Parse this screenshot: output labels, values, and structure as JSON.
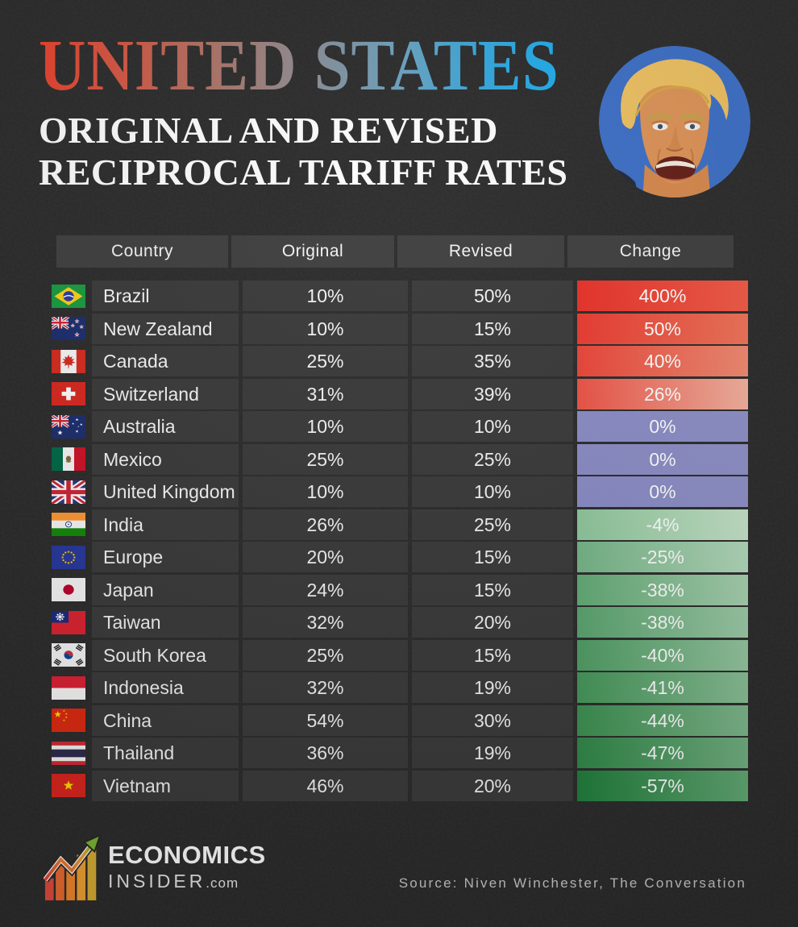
{
  "header": {
    "title": "UNITED STATES",
    "subtitle_line1": "ORIGINAL AND REVISED",
    "subtitle_line2": "RECIPROCAL TARIFF RATES",
    "title_gradient": [
      "#e8422d",
      "#93878b",
      "#1fabe9"
    ],
    "portrait": "donald-trump-photo",
    "portrait_bg": "#3d6fc6"
  },
  "table": {
    "columns": [
      "Country",
      "Original",
      "Revised",
      "Change"
    ],
    "header_bg": "#3f3f3f",
    "row_bg": "#3a3a3a",
    "rows": [
      {
        "country": "Brazil",
        "flag": "brazil",
        "original": "10%",
        "revised": "50%",
        "change": "400%",
        "change_bg": [
          "#e73128",
          "#f25a45"
        ]
      },
      {
        "country": "New Zealand",
        "flag": "new_zealand",
        "original": "10%",
        "revised": "15%",
        "change": "50%",
        "change_bg": [
          "#e93a30",
          "#f07358"
        ]
      },
      {
        "country": "Canada",
        "flag": "canada",
        "original": "25%",
        "revised": "35%",
        "change": "40%",
        "change_bg": [
          "#ea4538",
          "#f18a71"
        ]
      },
      {
        "country": "Switzerland",
        "flag": "switzerland",
        "original": "31%",
        "revised": "39%",
        "change": "26%",
        "change_bg": [
          "#ec5244",
          "#f5b29f"
        ]
      },
      {
        "country": "Australia",
        "flag": "australia",
        "original": "10%",
        "revised": "10%",
        "change": "0%",
        "change_bg": [
          "#8a8cc6",
          "#8f91c9"
        ]
      },
      {
        "country": "Mexico",
        "flag": "mexico",
        "original": "25%",
        "revised": "25%",
        "change": "0%",
        "change_bg": [
          "#8a8cc6",
          "#8f91c9"
        ]
      },
      {
        "country": "United Kingdom",
        "flag": "united_kingdom",
        "original": "10%",
        "revised": "10%",
        "change": "0%",
        "change_bg": [
          "#8a8cc6",
          "#8f91c9"
        ]
      },
      {
        "country": "India",
        "flag": "india",
        "original": "26%",
        "revised": "25%",
        "change": "-4%",
        "change_bg": [
          "#8ec79b",
          "#c6e5ca"
        ]
      },
      {
        "country": "Europe",
        "flag": "europe",
        "original": "20%",
        "revised": "15%",
        "change": "-25%",
        "change_bg": [
          "#75b586",
          "#b4dbbd"
        ]
      },
      {
        "country": "Japan",
        "flag": "japan",
        "original": "24%",
        "revised": "15%",
        "change": "-38%",
        "change_bg": [
          "#62ab75",
          "#a8d3b1"
        ]
      },
      {
        "country": "Taiwan",
        "flag": "taiwan",
        "original": "32%",
        "revised": "20%",
        "change": "-38%",
        "change_bg": [
          "#59a56e",
          "#9ecda9"
        ]
      },
      {
        "country": "South Korea",
        "flag": "south_korea",
        "original": "25%",
        "revised": "15%",
        "change": "-40%",
        "change_bg": [
          "#4f9e64",
          "#96c8a1"
        ]
      },
      {
        "country": "Indonesia",
        "flag": "indonesia",
        "original": "32%",
        "revised": "19%",
        "change": "-41%",
        "change_bg": [
          "#459759",
          "#8bc197"
        ]
      },
      {
        "country": "China",
        "flag": "china",
        "original": "54%",
        "revised": "30%",
        "change": "-44%",
        "change_bg": [
          "#3b9150",
          "#80b98d"
        ]
      },
      {
        "country": "Thailand",
        "flag": "thailand",
        "original": "36%",
        "revised": "19%",
        "change": "-47%",
        "change_bg": [
          "#2f8947",
          "#73b282"
        ]
      },
      {
        "country": "Vietnam",
        "flag": "vietnam",
        "original": "46%",
        "revised": "20%",
        "change": "-57%",
        "change_bg": [
          "#1f7f3b",
          "#63aa74"
        ]
      }
    ]
  },
  "footer": {
    "logo_icon": "bar-chart-arrow-icon",
    "logo_line1": "ECONOMICS",
    "logo_line2": "INSIDER",
    "logo_suffix": ".com",
    "source": "Source: Niven Winchester, The Conversation"
  },
  "chart_data": {
    "type": "table",
    "title": "United States Original and Revised Reciprocal Tariff Rates",
    "columns": [
      "Country",
      "Original",
      "Revised",
      "Change"
    ],
    "units": "percent",
    "rows": [
      [
        "Brazil",
        10,
        50,
        400
      ],
      [
        "New Zealand",
        10,
        15,
        50
      ],
      [
        "Canada",
        25,
        35,
        40
      ],
      [
        "Switzerland",
        31,
        39,
        26
      ],
      [
        "Australia",
        10,
        10,
        0
      ],
      [
        "Mexico",
        25,
        25,
        0
      ],
      [
        "United Kingdom",
        10,
        10,
        0
      ],
      [
        "India",
        26,
        25,
        -4
      ],
      [
        "Europe",
        20,
        15,
        -25
      ],
      [
        "Japan",
        24,
        15,
        -38
      ],
      [
        "Taiwan",
        32,
        20,
        -38
      ],
      [
        "South Korea",
        25,
        15,
        -40
      ],
      [
        "Indonesia",
        32,
        19,
        -41
      ],
      [
        "China",
        54,
        30,
        -44
      ],
      [
        "Thailand",
        36,
        19,
        -47
      ],
      [
        "Vietnam",
        46,
        20,
        -57
      ]
    ],
    "legend": {
      "increase_color": "#e73128",
      "no_change_color": "#8a8cc6",
      "decrease_color": "#2f8947"
    }
  }
}
